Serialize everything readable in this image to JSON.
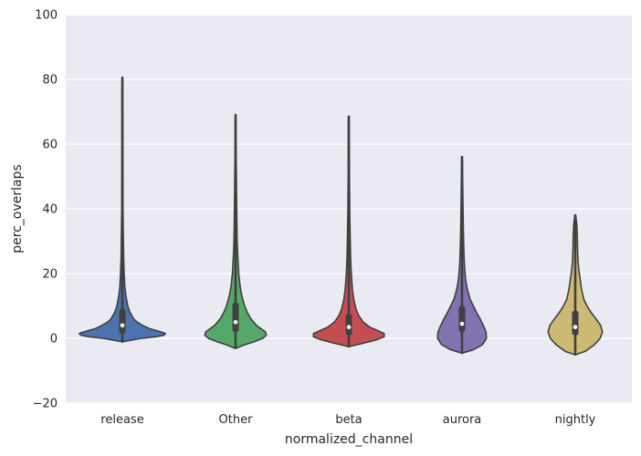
{
  "chart_data": {
    "type": "violin",
    "title": "",
    "xlabel": "normalized_channel",
    "ylabel": "perc_overlaps",
    "ylim": [
      -20,
      100
    ],
    "yticks": [
      -20,
      0,
      20,
      40,
      60,
      80,
      100
    ],
    "ytick_labels": [
      "−20",
      "0",
      "20",
      "40",
      "60",
      "80",
      "100"
    ],
    "grid": true,
    "background": "#eaeaf2",
    "categories": [
      "release",
      "Other",
      "beta",
      "aurora",
      "nightly"
    ],
    "series": [
      {
        "category": "release",
        "color": "#4c72b0",
        "min": -1,
        "max": 80.5,
        "q1": 1.5,
        "median": 4,
        "q3": 9,
        "whisker_low": 0,
        "whisker_high": 16,
        "density": [
          [
            -1,
            0.02
          ],
          [
            0,
            0.42
          ],
          [
            0.5,
            0.75
          ],
          [
            1,
            0.92
          ],
          [
            1.5,
            0.95
          ],
          [
            2,
            0.85
          ],
          [
            3,
            0.6
          ],
          [
            4,
            0.45
          ],
          [
            5,
            0.33
          ],
          [
            6,
            0.25
          ],
          [
            8,
            0.17
          ],
          [
            10,
            0.12
          ],
          [
            13,
            0.08
          ],
          [
            16,
            0.055
          ],
          [
            20,
            0.04
          ],
          [
            25,
            0.028
          ],
          [
            33,
            0.02
          ],
          [
            40,
            0.014
          ],
          [
            50,
            0.012
          ],
          [
            60,
            0.008
          ],
          [
            70,
            0.007
          ],
          [
            80.5,
            0.005
          ]
        ]
      },
      {
        "category": "Other",
        "color": "#55a868",
        "min": -3,
        "max": 69,
        "q1": 2,
        "median": 5,
        "q3": 11,
        "whisker_low": 0,
        "whisker_high": 22,
        "density": [
          [
            -3,
            0.02
          ],
          [
            -2,
            0.2
          ],
          [
            -1,
            0.42
          ],
          [
            0,
            0.6
          ],
          [
            1,
            0.68
          ],
          [
            2,
            0.66
          ],
          [
            3,
            0.56
          ],
          [
            4,
            0.46
          ],
          [
            6,
            0.34
          ],
          [
            8,
            0.26
          ],
          [
            10,
            0.2
          ],
          [
            13,
            0.14
          ],
          [
            16,
            0.1
          ],
          [
            20,
            0.07
          ],
          [
            25,
            0.05
          ],
          [
            30,
            0.035
          ],
          [
            40,
            0.025
          ],
          [
            50,
            0.018
          ],
          [
            60,
            0.01
          ],
          [
            69,
            0.006
          ]
        ]
      },
      {
        "category": "beta",
        "color": "#c44e52",
        "min": -2.5,
        "max": 68.5,
        "q1": 1,
        "median": 3.5,
        "q3": 7.5,
        "whisker_low": 0,
        "whisker_high": 17,
        "density": [
          [
            -2.5,
            0.02
          ],
          [
            -1.5,
            0.32
          ],
          [
            -0.5,
            0.6
          ],
          [
            0.5,
            0.78
          ],
          [
            1.5,
            0.78
          ],
          [
            2.5,
            0.62
          ],
          [
            3.5,
            0.46
          ],
          [
            5,
            0.32
          ],
          [
            7,
            0.22
          ],
          [
            9,
            0.16
          ],
          [
            12,
            0.11
          ],
          [
            15,
            0.08
          ],
          [
            20,
            0.055
          ],
          [
            25,
            0.04
          ],
          [
            33,
            0.028
          ],
          [
            40,
            0.02
          ],
          [
            50,
            0.014
          ],
          [
            60,
            0.01
          ],
          [
            68.5,
            0.006
          ]
        ]
      },
      {
        "category": "aurora",
        "color": "#8172b2",
        "min": -4.5,
        "max": 56,
        "q1": 2,
        "median": 4.5,
        "q3": 10,
        "whisker_low": 0,
        "whisker_high": 20,
        "density": [
          [
            -4.5,
            0.02
          ],
          [
            -3.5,
            0.25
          ],
          [
            -2,
            0.45
          ],
          [
            0,
            0.54
          ],
          [
            2,
            0.53
          ],
          [
            4,
            0.47
          ],
          [
            6,
            0.4
          ],
          [
            8,
            0.32
          ],
          [
            10,
            0.25
          ],
          [
            12,
            0.18
          ],
          [
            15,
            0.12
          ],
          [
            18,
            0.08
          ],
          [
            22,
            0.055
          ],
          [
            27,
            0.04
          ],
          [
            33,
            0.03
          ],
          [
            40,
            0.022
          ],
          [
            48,
            0.015
          ],
          [
            56,
            0.006
          ]
        ]
      },
      {
        "category": "nightly",
        "color": "#ccb974",
        "min": -5,
        "max": 38,
        "q1": 1,
        "median": 3.5,
        "q3": 8.5,
        "whisker_low": 0,
        "whisker_high": 19,
        "density": [
          [
            -5,
            0.02
          ],
          [
            -4,
            0.22
          ],
          [
            -2,
            0.42
          ],
          [
            0,
            0.55
          ],
          [
            2,
            0.6
          ],
          [
            4,
            0.56
          ],
          [
            6,
            0.46
          ],
          [
            8,
            0.35
          ],
          [
            10,
            0.26
          ],
          [
            12,
            0.19
          ],
          [
            15,
            0.14
          ],
          [
            18,
            0.11
          ],
          [
            21,
            0.08
          ],
          [
            24,
            0.06
          ],
          [
            28,
            0.05
          ],
          [
            32,
            0.045
          ],
          [
            35,
            0.035
          ],
          [
            38,
            0.01
          ]
        ]
      }
    ]
  }
}
